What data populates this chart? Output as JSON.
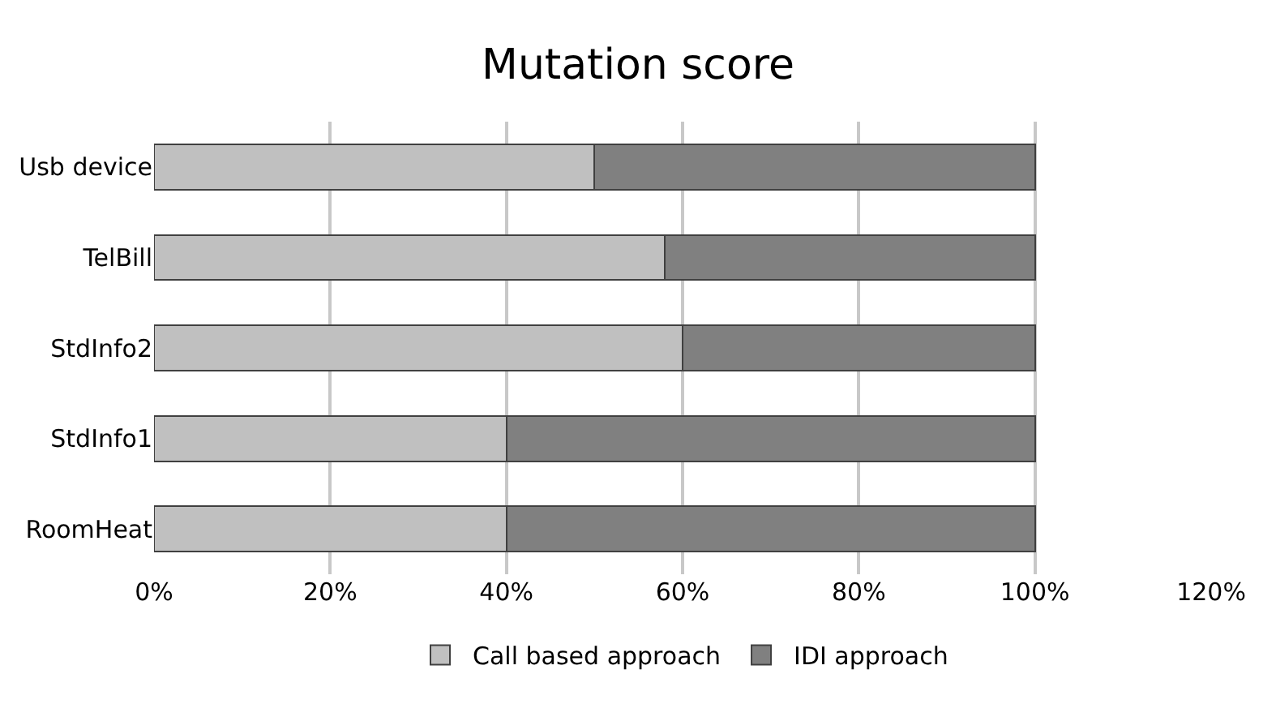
{
  "chart_data": {
    "type": "bar",
    "orientation": "horizontal",
    "stacked": true,
    "title": "Mutation score",
    "categories": [
      "Usb device",
      "TelBill",
      "StdInfo2",
      "StdInfo1",
      "RoomHeat"
    ],
    "series": [
      {
        "name": "Call based approach",
        "color": "#c0c0c0",
        "values": [
          50,
          58,
          60,
          40,
          40
        ]
      },
      {
        "name": "IDI approach",
        "color": "#808080",
        "values": [
          50,
          42,
          40,
          60,
          60
        ]
      }
    ],
    "xlim": [
      0,
      120
    ],
    "xticks": [
      {
        "value": 0,
        "label": "0%"
      },
      {
        "value": 20,
        "label": "20%"
      },
      {
        "value": 40,
        "label": "40%"
      },
      {
        "value": 60,
        "label": "60%"
      },
      {
        "value": 80,
        "label": "80%"
      },
      {
        "value": 100,
        "label": "100%"
      },
      {
        "value": 120,
        "label": "120%"
      }
    ],
    "grid": "x",
    "legend": "bottom"
  }
}
